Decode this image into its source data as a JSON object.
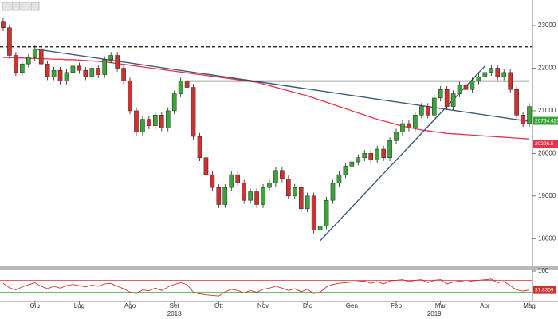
{
  "chart_data": [
    {
      "type": "candlestick",
      "categories": [
        null,
        null,
        null,
        null,
        null,
        "Giu",
        null,
        null,
        null,
        null,
        null,
        null,
        "Lug",
        null,
        null,
        null,
        null,
        null,
        null,
        null,
        "Ago",
        null,
        null,
        null,
        null,
        null,
        null,
        "Set",
        null,
        null,
        null,
        null,
        null,
        null,
        "Ott",
        null,
        null,
        null,
        null,
        null,
        null,
        "Nov",
        null,
        null,
        null,
        null,
        null,
        null,
        "Dic",
        null,
        null,
        null,
        null,
        null,
        null,
        "Gen",
        null,
        null,
        null,
        null,
        null,
        null,
        "Feb",
        null,
        null,
        null,
        null,
        null,
        null,
        "Mar",
        null,
        null,
        null,
        null,
        null,
        null,
        "Apr",
        null,
        null,
        null,
        null,
        null,
        null,
        "Mag"
      ],
      "years": [
        {
          "value": 27,
          "label": "2018"
        },
        {
          "value": 68,
          "label": "2019"
        }
      ],
      "open": [
        23100,
        22950,
        22300,
        21900,
        22100,
        22250,
        22450,
        22100,
        21800,
        21950,
        21700,
        21900,
        22050,
        21950,
        21800,
        22000,
        21850,
        22200,
        22300,
        22000,
        21700,
        21000,
        20500,
        20800,
        20650,
        20900,
        20600,
        21000,
        21400,
        21700,
        21550,
        20400,
        19900,
        19500,
        19200,
        18800,
        19200,
        19500,
        19300,
        18900,
        19100,
        18800,
        19200,
        19300,
        19600,
        19400,
        19000,
        19200,
        18700,
        19000,
        18200,
        18300,
        18900,
        19300,
        19500,
        19700,
        19800,
        19900,
        20000,
        19850,
        20100,
        19900,
        20300,
        20500,
        20700,
        20600,
        20900,
        21100,
        20900,
        21300,
        21500,
        21100,
        21400,
        21600,
        21500,
        21700,
        21800,
        21900,
        22000,
        21800,
        21900,
        21500,
        20900,
        20700
      ],
      "high": [
        23180,
        23030,
        22380,
        22180,
        22330,
        22530,
        22530,
        22180,
        22030,
        22030,
        21980,
        22130,
        22130,
        22030,
        22080,
        22080,
        22280,
        22380,
        22380,
        22080,
        21780,
        21080,
        20880,
        20880,
        20980,
        20980,
        21080,
        21480,
        21780,
        21780,
        21630,
        20480,
        19980,
        19580,
        19280,
        19280,
        19580,
        19580,
        19380,
        19180,
        19180,
        19280,
        19380,
        19680,
        19680,
        19480,
        19280,
        19280,
        19080,
        19080,
        18380,
        18980,
        19380,
        19580,
        19780,
        19880,
        19980,
        20080,
        20080,
        20180,
        20180,
        20380,
        20580,
        20780,
        20780,
        20980,
        21180,
        21180,
        21380,
        21580,
        21580,
        21480,
        21680,
        21680,
        21780,
        21880,
        21980,
        22080,
        22080,
        21980,
        21980,
        21580,
        20980,
        21180
      ],
      "low": [
        22870,
        22220,
        21820,
        21820,
        22020,
        22170,
        22020,
        21720,
        21720,
        21620,
        21620,
        21820,
        21870,
        21720,
        21720,
        21770,
        21770,
        22120,
        21920,
        21620,
        20920,
        20420,
        20420,
        20570,
        20570,
        20520,
        20520,
        20920,
        21320,
        21470,
        20320,
        19820,
        19420,
        19120,
        18720,
        18720,
        19120,
        19220,
        18820,
        18820,
        18720,
        18720,
        19120,
        19220,
        19320,
        18920,
        18920,
        18620,
        18620,
        18120,
        17950,
        18220,
        18820,
        19220,
        19420,
        19620,
        19720,
        19820,
        19770,
        19770,
        19820,
        19820,
        20220,
        20420,
        20520,
        20520,
        20820,
        20820,
        20820,
        21220,
        21020,
        21020,
        21320,
        21420,
        21420,
        21620,
        21720,
        21820,
        21720,
        21720,
        21420,
        20820,
        20620,
        20620
      ],
      "close": [
        22950,
        22300,
        21900,
        22100,
        22250,
        22450,
        22100,
        21800,
        21950,
        21700,
        21900,
        22050,
        21950,
        21800,
        22000,
        21850,
        22200,
        22300,
        22000,
        21700,
        21000,
        20500,
        20800,
        20650,
        20900,
        20600,
        21000,
        21400,
        21700,
        21550,
        20400,
        19900,
        19500,
        19200,
        18800,
        19200,
        19500,
        19300,
        18900,
        19100,
        18800,
        19200,
        19300,
        19600,
        19400,
        19000,
        19200,
        18700,
        19000,
        18200,
        18300,
        18900,
        19300,
        19500,
        19700,
        19800,
        19900,
        20000,
        19850,
        20100,
        19900,
        20300,
        20500,
        20700,
        20600,
        20900,
        21100,
        20900,
        21300,
        21500,
        21100,
        21400,
        21600,
        21500,
        21700,
        21800,
        21900,
        22000,
        21800,
        21900,
        21500,
        20900,
        20700,
        21100
      ],
      "up_color": "#3aa63a",
      "down_color": "#d0302e",
      "moving_average": {
        "color": "#e8324a",
        "values": [
          22250,
          22250,
          22240,
          22240,
          22230,
          22230,
          22220,
          22220,
          22210,
          22210,
          22200,
          22200,
          22190,
          22180,
          22170,
          22160,
          22150,
          22130,
          22110,
          22090,
          22070,
          22050,
          22030,
          22010,
          21990,
          21970,
          21950,
          21930,
          21910,
          21890,
          21870,
          21850,
          21830,
          21810,
          21790,
          21770,
          21750,
          21730,
          21710,
          21690,
          21670,
          21630,
          21590,
          21550,
          21510,
          21470,
          21430,
          21390,
          21350,
          21300,
          21250,
          21200,
          21150,
          21100,
          21050,
          21000,
          20950,
          20900,
          20850,
          20800,
          20760,
          20720,
          20680,
          20640,
          20610,
          20580,
          20550,
          20530,
          20510,
          20490,
          20470,
          20460,
          20450,
          20440,
          20430,
          20420,
          20410,
          20400,
          20390,
          20380,
          20370,
          20360,
          20350,
          20340
        ]
      },
      "trendlines": [
        {
          "from": [
            5,
            22450
          ],
          "to": [
            83,
            20750
          ],
          "color": "#3d5a78"
        },
        {
          "from": [
            50,
            17950
          ],
          "to": [
            76,
            22050
          ],
          "color": "#3d5a78"
        },
        {
          "from": [
            29,
            21700
          ],
          "to": [
            83,
            21700
          ],
          "color": "#111111"
        }
      ],
      "dashed_level": 22500,
      "price_tags": [
        {
          "value": 20764.4219,
          "label": "20764.4219",
          "color": "#3aa63a"
        },
        {
          "value": 20226.5,
          "label": "20226.5",
          "color": "#e8324a"
        }
      ],
      "ylim": [
        17350,
        23600
      ],
      "yticks": [
        18000,
        19000,
        20000,
        21000,
        22000,
        23000
      ]
    },
    {
      "type": "line",
      "color": "#d0302e",
      "values": [
        60,
        45,
        38,
        48,
        55,
        62,
        50,
        42,
        50,
        44,
        52,
        56,
        52,
        48,
        54,
        50,
        58,
        60,
        50,
        42,
        30,
        26,
        38,
        35,
        44,
        36,
        48,
        56,
        62,
        56,
        30,
        25,
        22,
        20,
        18,
        32,
        40,
        36,
        28,
        36,
        30,
        40,
        44,
        50,
        44,
        36,
        42,
        32,
        40,
        26,
        30,
        48,
        56,
        60,
        62,
        64,
        66,
        68,
        60,
        66,
        58,
        68,
        70,
        72,
        66,
        70,
        72,
        62,
        70,
        72,
        58,
        64,
        68,
        64,
        68,
        70,
        72,
        74,
        62,
        66,
        52,
        38,
        34,
        37.8359
      ],
      "levels": [
        {
          "value": 70,
          "color": "#d0302e"
        },
        {
          "value": 30,
          "color": "#3aa63a"
        }
      ],
      "ylim": [
        0,
        100
      ],
      "yticks": [
        100
      ]
    }
  ]
}
